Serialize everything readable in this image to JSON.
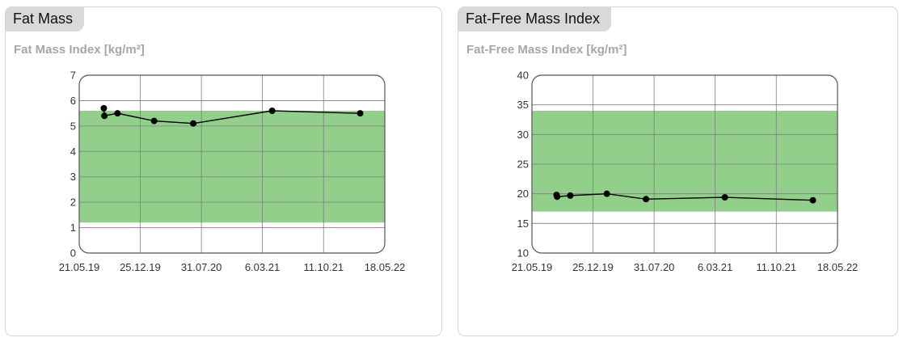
{
  "cards": [
    {
      "title": "Fat Mass",
      "subtitle": "Fat Mass Index [kg/m²]"
    },
    {
      "title": "Fat-Free Mass Index",
      "subtitle": "Fat-Free Mass Index [kg/m²]"
    }
  ],
  "colors": {
    "band": "#92cf8a",
    "line": "#000000",
    "grid": "#7f7f7f",
    "lower_limit_line": "#b58ab2"
  },
  "chart_data": [
    {
      "type": "line",
      "title": "Fat Mass Index [kg/m²]",
      "x_tick_labels": [
        "21.05.19",
        "25.12.19",
        "31.07.20",
        "6.03.21",
        "11.10.21",
        "18.05.22"
      ],
      "x_ticks": [
        "2019-05-21",
        "2019-12-25",
        "2020-07-31",
        "2021-03-06",
        "2021-10-11",
        "2022-05-18"
      ],
      "xlim": [
        "2019-05-21",
        "2022-05-18"
      ],
      "y_ticks": [
        0,
        1,
        2,
        3,
        4,
        5,
        6,
        7
      ],
      "ylim": [
        0,
        7
      ],
      "grid": true,
      "reference_band": [
        1.2,
        5.6
      ],
      "series": [
        {
          "x": [
            "2019-08-17",
            "2019-08-19",
            "2019-10-05",
            "2020-02-13",
            "2020-07-02",
            "2021-04-10",
            "2022-02-19"
          ],
          "y": [
            5.7,
            5.4,
            5.5,
            5.2,
            5.1,
            5.6,
            5.5
          ]
        }
      ]
    },
    {
      "type": "line",
      "title": "Fat-Free Mass Index [kg/m²]",
      "x_tick_labels": [
        "21.05.19",
        "25.12.19",
        "31.07.20",
        "6.03.21",
        "11.10.21",
        "18.05.22"
      ],
      "x_ticks": [
        "2019-05-21",
        "2019-12-25",
        "2020-07-31",
        "2021-03-06",
        "2021-10-11",
        "2022-05-18"
      ],
      "xlim": [
        "2019-05-21",
        "2022-05-18"
      ],
      "y_ticks": [
        10,
        15,
        20,
        25,
        30,
        35,
        40
      ],
      "ylim": [
        10,
        40
      ],
      "grid": true,
      "reference_band": [
        17,
        34
      ],
      "series": [
        {
          "x": [
            "2019-08-17",
            "2019-08-19",
            "2019-10-05",
            "2020-02-13",
            "2020-07-02",
            "2021-04-10",
            "2022-02-19"
          ],
          "y": [
            19.8,
            19.5,
            19.7,
            20.0,
            19.1,
            19.4,
            18.9
          ]
        }
      ]
    }
  ]
}
